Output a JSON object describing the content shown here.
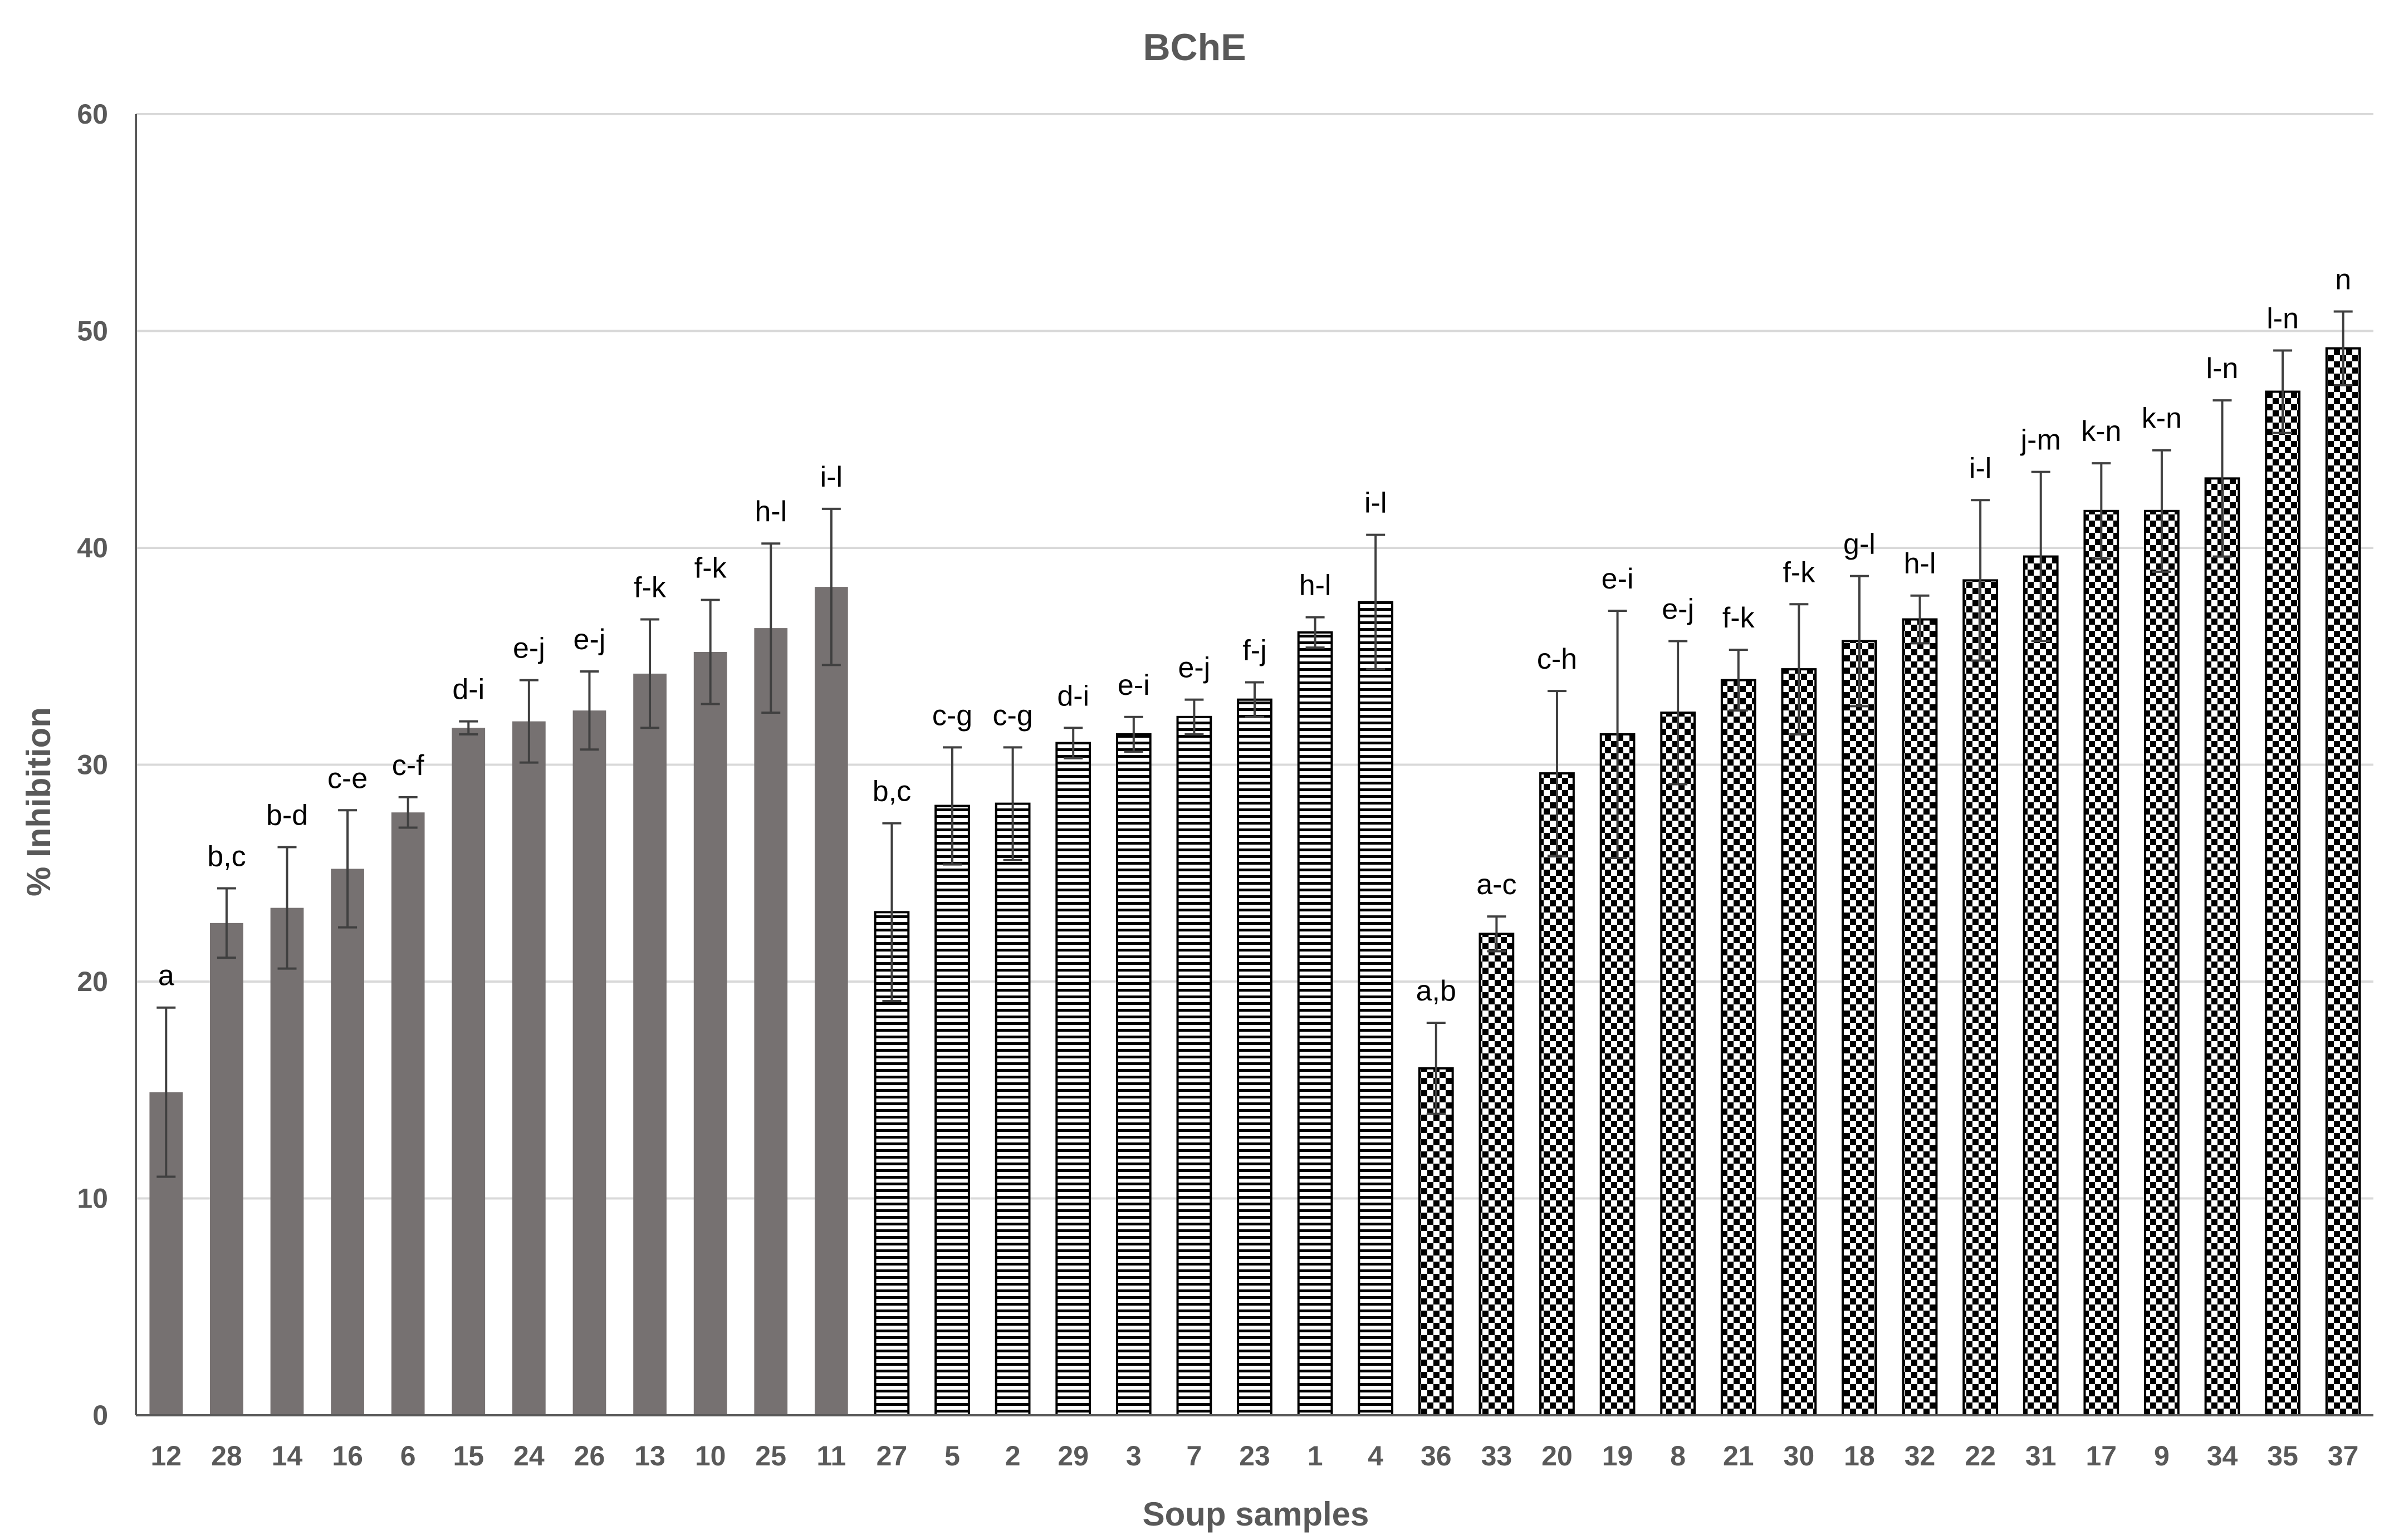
{
  "chart_data": {
    "type": "bar",
    "title": "BChE",
    "xlabel": "Soup samples",
    "ylabel": "% Inhibition",
    "ylim": [
      0,
      60
    ],
    "yticks": [
      0,
      10,
      20,
      30,
      40,
      50,
      60
    ],
    "grid": true,
    "legend": "none",
    "categories": [
      "12",
      "28",
      "14",
      "16",
      "6",
      "15",
      "24",
      "26",
      "13",
      "10",
      "25",
      "11",
      "27",
      "5",
      "2",
      "29",
      "3",
      "7",
      "23",
      "1",
      "4",
      "36",
      "33",
      "20",
      "19",
      "8",
      "21",
      "30",
      "18",
      "32",
      "22",
      "31",
      "17",
      "9",
      "34",
      "35",
      "37"
    ],
    "values": [
      14.9,
      22.7,
      23.4,
      25.2,
      27.8,
      31.7,
      32.0,
      32.5,
      34.2,
      35.2,
      36.3,
      38.2,
      23.2,
      28.1,
      28.2,
      31.0,
      31.4,
      32.2,
      33.0,
      36.1,
      37.5,
      16.0,
      22.2,
      29.6,
      31.4,
      32.4,
      33.9,
      34.4,
      35.7,
      36.7,
      38.5,
      39.6,
      41.7,
      41.7,
      43.2,
      47.2,
      49.2
    ],
    "errors": [
      3.9,
      1.6,
      2.8,
      2.7,
      0.7,
      0.3,
      1.9,
      1.8,
      2.5,
      2.4,
      3.9,
      3.6,
      4.1,
      2.7,
      2.6,
      0.7,
      0.8,
      0.8,
      0.8,
      0.7,
      3.1,
      2.1,
      0.8,
      3.8,
      5.7,
      3.3,
      1.4,
      3.0,
      3.0,
      1.1,
      3.7,
      3.9,
      2.2,
      2.8,
      3.6,
      1.9,
      1.7
    ],
    "letters": [
      "a",
      "b,c",
      "b-d",
      "c-e",
      "c-f",
      "d-i",
      "e-j",
      "e-j",
      "f-k",
      "f-k",
      "h-l",
      "i-l",
      "b,c",
      "c-g",
      "c-g",
      "d-i",
      "e-i",
      "e-j",
      "f-j",
      "h-l",
      "i-l",
      "a,b",
      "a-c",
      "c-h",
      "e-i",
      "e-j",
      "f-k",
      "f-k",
      "g-l",
      "h-l",
      "i-l",
      "j-m",
      "k-n",
      "k-n",
      "l-n",
      "l-n",
      "n"
    ],
    "patterns": [
      "solid",
      "solid",
      "solid",
      "solid",
      "solid",
      "solid",
      "solid",
      "solid",
      "solid",
      "solid",
      "solid",
      "solid",
      "horizontal",
      "horizontal",
      "horizontal",
      "horizontal",
      "horizontal",
      "horizontal",
      "horizontal",
      "horizontal",
      "horizontal",
      "checker",
      "checker",
      "checker",
      "checker",
      "checker",
      "checker",
      "checker",
      "checker",
      "checker",
      "checker",
      "checker",
      "checker",
      "checker",
      "checker",
      "checker",
      "checker"
    ]
  },
  "colors": {
    "solid_bar": "#767171",
    "pattern_ink": "#000000",
    "grid": "#d9d9d9",
    "axis": "#595959",
    "error_bar": "#404040"
  }
}
